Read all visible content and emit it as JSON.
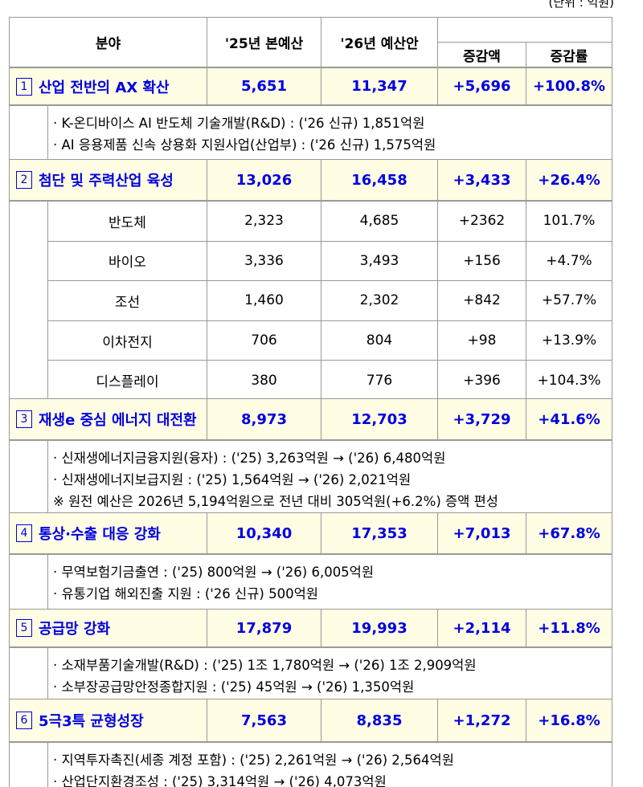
{
  "unit": "(단위 : 억원)",
  "header": {
    "field": "분야",
    "col25": "'25년 본예산",
    "col26": "'26년 예산안",
    "change": "증감액",
    "rate": "증감률"
  },
  "sections": [
    {
      "num": "1",
      "title": "산업 전반의 AX 확산",
      "values": [
        "5,651",
        "11,347",
        "+5,696",
        "+100.8%"
      ],
      "notes": [
        "· K-온디바이스 AI 반도체 기술개발(R&D) : ('26 신규) 1,851억원",
        "· AI 응용제품 신속 상용화 지원사업(산업부) : ('26 신규) 1,575억원"
      ]
    },
    {
      "num": "2",
      "title": "첨단 및 주력산업 육성",
      "values": [
        "13,026",
        "16,458",
        "+3,433",
        "+26.4%"
      ],
      "items": [
        {
          "label": "반도체",
          "values": [
            "2,323",
            "4,685",
            "+2362",
            "101.7%"
          ]
        },
        {
          "label": "바이오",
          "values": [
            "3,336",
            "3,493",
            "+156",
            "+4.7%"
          ]
        },
        {
          "label": "조선",
          "values": [
            "1,460",
            "2,302",
            "+842",
            "+57.7%"
          ]
        },
        {
          "label": "이차전지",
          "values": [
            "706",
            "804",
            "+98",
            "+13.9%"
          ]
        },
        {
          "label": "디스플레이",
          "values": [
            "380",
            "776",
            "+396",
            "+104.3%"
          ]
        }
      ]
    },
    {
      "num": "3",
      "title": "재생e 중심 에너지 대전환",
      "values": [
        "8,973",
        "12,703",
        "+3,729",
        "+41.6%"
      ],
      "notes": [
        "· 신재생에너지금융지원(융자) : ('25) 3,263억원 → ('26) 6,480억원",
        "· 신재생에너지보급지원 : ('25) 1,564억원 → ('26) 2,021억원",
        "※ 원전 예산은 2026년 5,194억원으로 전년 대비 305억원(+6.2%) 증액 편성"
      ]
    },
    {
      "num": "4",
      "title": "통상·수출 대응 강화",
      "values": [
        "10,340",
        "17,353",
        "+7,013",
        "+67.8%"
      ],
      "notes": [
        "· 무역보험기금출연 : ('25) 800억원 → ('26) 6,005억원",
        "· 유통기업 해외진출 지원 : ('26 신규) 500억원"
      ]
    },
    {
      "num": "5",
      "title": "공급망 강화",
      "values": [
        "17,879",
        "19,993",
        "+2,114",
        "+11.8%"
      ],
      "notes": [
        "· 소재부품기술개발(R&D) : ('25) 1조 1,780억원 → ('26) 1조 2,909억원",
        "· 소부장공급망안정종합지원 : ('25) 45억원 → ('26) 1,350억원"
      ]
    },
    {
      "num": "6",
      "title": "5극3특 균형성장",
      "values": [
        "7,563",
        "8,835",
        "+1,272",
        "+16.8%"
      ],
      "notes": [
        "· 지역투자촉진(세종 계정 포함) : ('25) 2,261억원 → ('26) 2,564억원",
        "· 산업단지환경조성 : ('25) 3,314억원 → ('26) 4,073억원"
      ]
    }
  ]
}
